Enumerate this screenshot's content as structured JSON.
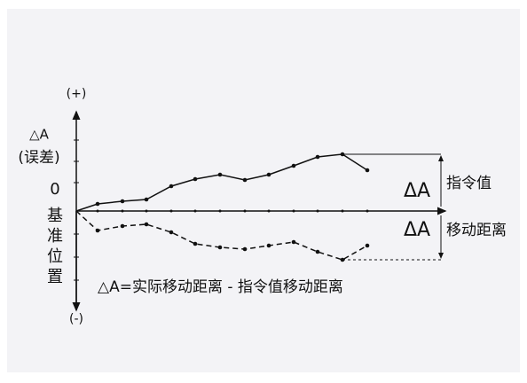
{
  "axis": {
    "plus": "(+)",
    "minus": "(-)",
    "delta": "△A",
    "error": "(误差)",
    "zero": "0",
    "baseline": [
      "基",
      "准",
      "位",
      "置"
    ]
  },
  "labels": {
    "command": {
      "symbol": "ΔA",
      "text": "指令值"
    },
    "movement": {
      "symbol": "ΔA",
      "text": "移动距离"
    }
  },
  "formula": "△A=实际移动距离 - 指令值移动距离"
}
